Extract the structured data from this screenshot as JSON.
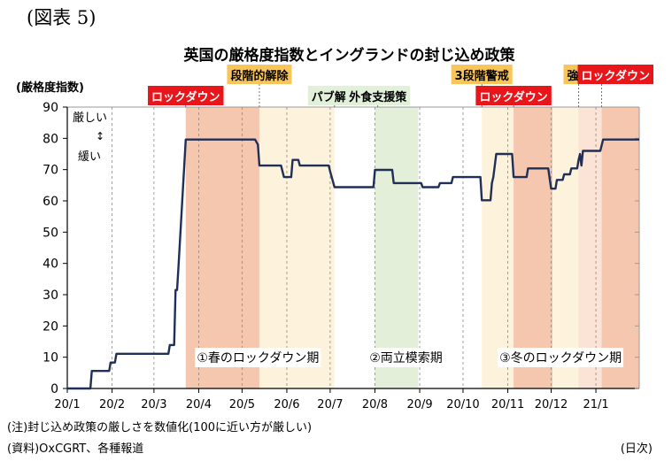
{
  "figure_label": "(図表 5)",
  "note": "(注)封じ込め政策の厳しさを数値化(100に近い方が厳しい)",
  "source": "(資料)OxCGRT、各種報道",
  "x_unit": "(日次)",
  "colors": {
    "line": "#1f2f57",
    "lockdown_fill": "#f4c7ae",
    "lockdown_fill_light": "#fbe3d6",
    "easing_fill": "#fdf3dc",
    "support_fill": "#e3efd9",
    "tier_fill": "#fdf3dc",
    "red_label": "#e8161b",
    "orange_label": "#f8c55a",
    "green_label": "#e2efd9"
  },
  "chart_data": {
    "type": "line",
    "title": "英国の厳格度指数とイングランドの封じ込め政策",
    "ylabel": "(厳格度指数)",
    "ylim": [
      0,
      90
    ],
    "yticks": [
      0,
      10,
      20,
      30,
      40,
      50,
      60,
      70,
      80,
      90
    ],
    "xlim": [
      "2020-01-01",
      "2021-01-31"
    ],
    "xticks": [
      {
        "label": "20/1",
        "date": "2020-01-01"
      },
      {
        "label": "20/2",
        "date": "2020-02-01"
      },
      {
        "label": "20/3",
        "date": "2020-03-01"
      },
      {
        "label": "20/4",
        "date": "2020-04-01"
      },
      {
        "label": "20/5",
        "date": "2020-05-01"
      },
      {
        "label": "20/6",
        "date": "2020-06-01"
      },
      {
        "label": "20/7",
        "date": "2020-07-01"
      },
      {
        "label": "20/8",
        "date": "2020-08-01"
      },
      {
        "label": "20/9",
        "date": "2020-09-01"
      },
      {
        "label": "20/10",
        "date": "2020-10-01"
      },
      {
        "label": "20/11",
        "date": "2020-11-01"
      },
      {
        "label": "20/12",
        "date": "2020-12-01"
      },
      {
        "label": "21/1",
        "date": "2021-01-01"
      }
    ],
    "grid": {
      "vertical": "dashed",
      "horizontal": false
    },
    "series": [
      {
        "points": [
          [
            "2020-01-01",
            0
          ],
          [
            "2020-01-17",
            0
          ],
          [
            "2020-01-18",
            5.6
          ],
          [
            "2020-01-30",
            5.6
          ],
          [
            "2020-01-31",
            8.3
          ],
          [
            "2020-02-03",
            8.3
          ],
          [
            "2020-02-04",
            11.1
          ],
          [
            "2020-03-11",
            11.1
          ],
          [
            "2020-03-12",
            13.9
          ],
          [
            "2020-03-15",
            13.9
          ],
          [
            "2020-03-16",
            31.5
          ],
          [
            "2020-03-17",
            31.5
          ],
          [
            "2020-03-18",
            39
          ],
          [
            "2020-03-23",
            79.6
          ],
          [
            "2020-05-10",
            79.6
          ],
          [
            "2020-05-12",
            78
          ],
          [
            "2020-05-13",
            71.3
          ],
          [
            "2020-05-28",
            71.3
          ],
          [
            "2020-05-30",
            67.6
          ],
          [
            "2020-06-04",
            67.6
          ],
          [
            "2020-06-05",
            73.1
          ],
          [
            "2020-06-09",
            73.1
          ],
          [
            "2020-06-10",
            71.3
          ],
          [
            "2020-06-30",
            71.3
          ],
          [
            "2020-07-01",
            69.4
          ],
          [
            "2020-07-04",
            64.4
          ],
          [
            "2020-07-31",
            64.4
          ],
          [
            "2020-08-01",
            69.9
          ],
          [
            "2020-08-13",
            69.9
          ],
          [
            "2020-08-14",
            65.7
          ],
          [
            "2020-09-02",
            65.7
          ],
          [
            "2020-09-03",
            64.4
          ],
          [
            "2020-09-14",
            64.4
          ],
          [
            "2020-09-15",
            65.7
          ],
          [
            "2020-09-23",
            65.7
          ],
          [
            "2020-09-24",
            67.6
          ],
          [
            "2020-10-13",
            67.6
          ],
          [
            "2020-10-14",
            60.2
          ],
          [
            "2020-10-20",
            60.2
          ],
          [
            "2020-10-21",
            65.7
          ],
          [
            "2020-10-22",
            67.6
          ],
          [
            "2020-10-24",
            75
          ],
          [
            "2020-11-04",
            75
          ],
          [
            "2020-11-05",
            67.6
          ],
          [
            "2020-11-14",
            67.6
          ],
          [
            "2020-11-15",
            70.4
          ],
          [
            "2020-11-29",
            70.4
          ],
          [
            "2020-12-01",
            63.9
          ],
          [
            "2020-12-04",
            63.9
          ],
          [
            "2020-12-05",
            66.7
          ],
          [
            "2020-12-09",
            66.7
          ],
          [
            "2020-12-10",
            68.5
          ],
          [
            "2020-12-14",
            68.5
          ],
          [
            "2020-12-15",
            70.4
          ],
          [
            "2020-12-19",
            70.4
          ],
          [
            "2020-12-20",
            73.1
          ],
          [
            "2020-12-21",
            75
          ],
          [
            "2020-12-22",
            71.3
          ],
          [
            "2020-12-23",
            76
          ],
          [
            "2021-01-04",
            76
          ],
          [
            "2021-01-06",
            79.6
          ],
          [
            "2021-01-31",
            79.6
          ]
        ]
      }
    ],
    "shaded_periods": [
      {
        "start": "2020-03-23",
        "end": "2020-05-13",
        "color": "lockdown_fill"
      },
      {
        "start": "2020-05-13",
        "end": "2020-07-04",
        "color": "easing_fill"
      },
      {
        "start": "2020-08-01",
        "end": "2020-08-31",
        "color": "support_fill"
      },
      {
        "start": "2020-10-14",
        "end": "2020-11-05",
        "color": "tier_fill"
      },
      {
        "start": "2020-11-05",
        "end": "2020-12-02",
        "color": "lockdown_fill"
      },
      {
        "start": "2020-12-02",
        "end": "2020-12-20",
        "color": "tier_fill"
      },
      {
        "start": "2020-12-20",
        "end": "2021-01-05",
        "color": "lockdown_fill_light"
      },
      {
        "start": "2021-01-05",
        "end": "2021-01-31",
        "color": "lockdown_fill"
      }
    ],
    "event_labels": [
      {
        "text": "ロックダウン",
        "style": "red",
        "date": "2020-03-23",
        "level": 1
      },
      {
        "text": "段階的解除",
        "style": "orange",
        "date": "2020-05-13",
        "level": 2
      },
      {
        "text": "パブ解禁",
        "style": "green",
        "date": "2020-07-04",
        "level": 1
      },
      {
        "text": "外食支援策",
        "style": "green",
        "date": "2020-08-03",
        "level": 1
      },
      {
        "text": "3段階警戒",
        "style": "orange",
        "date": "2020-10-14",
        "level": 2
      },
      {
        "text": "ロックダウン",
        "style": "red",
        "date": "2020-11-05",
        "level": 1
      },
      {
        "text": "強化",
        "style": "orange",
        "date": "2020-12-20",
        "level": 2
      },
      {
        "text": "ロックダウン",
        "style": "red",
        "date": "2021-01-05",
        "level": 0
      }
    ],
    "annotations": {
      "strict": "厳しい",
      "updown": "↕",
      "loose": "緩い",
      "periods": [
        {
          "text": "①春のロックダウン期",
          "from": "2020-03-23",
          "to": "2020-07-01"
        },
        {
          "text": "②両立模索期",
          "from": "2020-07-01",
          "to": "2020-10-14"
        },
        {
          "text": "③冬のロックダウン期",
          "from": "2020-10-14",
          "to": "2021-01-31"
        }
      ]
    }
  }
}
